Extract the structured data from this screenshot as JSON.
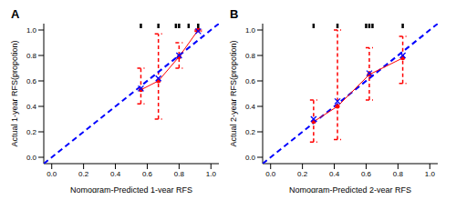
{
  "chart_data": [
    {
      "type": "scatter",
      "title": "A",
      "x_label": "Nomogram-Predicted 1-year RFS",
      "y_label": "Actual 1-year RFS(propotion)",
      "xlim": [
        -0.05,
        1.05
      ],
      "ylim": [
        -0.05,
        1.05
      ],
      "xticks": [
        {
          "value": 0,
          "label": "0.0"
        },
        {
          "value": 0.2,
          "label": "0.2"
        },
        {
          "value": 0.4,
          "label": "0.4"
        },
        {
          "value": 0.6,
          "label": "0.6"
        },
        {
          "value": 0.8,
          "label": "0.8"
        },
        {
          "value": 1,
          "label": "1.0"
        }
      ],
      "yticks": [
        {
          "value": 0,
          "label": "0.0"
        },
        {
          "value": 0.2,
          "label": "0.2"
        },
        {
          "value": 0.4,
          "label": "0.4"
        },
        {
          "value": 0.6,
          "label": "0.6"
        },
        {
          "value": 0.8,
          "label": "0.8"
        },
        {
          "value": 1,
          "label": "1.0"
        }
      ],
      "series": [
        {
          "type": "line",
          "color": "#0000ff",
          "line_style": "dashed",
          "x": [
            -0.05,
            1.05
          ],
          "values": [
            -0.05,
            1.05
          ]
        },
        {
          "type": "line",
          "color": "#ff0000",
          "marker": "circle",
          "x": [
            0.56,
            0.67,
            0.8,
            0.92
          ],
          "values": [
            0.53,
            0.6,
            0.79,
            1.0
          ],
          "error_low": [
            0.42,
            0.3,
            0.7,
            0.99
          ],
          "error_high": [
            0.7,
            0.97,
            0.9,
            1.0
          ]
        },
        {
          "type": "scatter",
          "color": "#0000ff",
          "marker": "x",
          "x": [
            0.56,
            0.67,
            0.8,
            0.92
          ],
          "values": [
            0.54,
            0.62,
            0.8,
            0.99
          ]
        }
      ],
      "rug": [
        0.56,
        0.67,
        0.78,
        0.8,
        0.86,
        0.92
      ]
    },
    {
      "type": "scatter",
      "title": "B",
      "x_label": "Nomogram-Predicted 2-year RFS",
      "y_label": "Actual 2-year RFS(propotion)",
      "xlim": [
        -0.05,
        1.05
      ],
      "ylim": [
        -0.05,
        1.05
      ],
      "xticks": [
        {
          "value": 0,
          "label": "0.0"
        },
        {
          "value": 0.2,
          "label": "0.2"
        },
        {
          "value": 0.4,
          "label": "0.4"
        },
        {
          "value": 0.6,
          "label": "0.6"
        },
        {
          "value": 0.8,
          "label": "0.8"
        },
        {
          "value": 1,
          "label": "1.0"
        }
      ],
      "yticks": [
        {
          "value": 0,
          "label": "0.0"
        },
        {
          "value": 0.2,
          "label": "0.2"
        },
        {
          "value": 0.4,
          "label": "0.4"
        },
        {
          "value": 0.6,
          "label": "0.6"
        },
        {
          "value": 0.8,
          "label": "0.8"
        },
        {
          "value": 1,
          "label": "1.0"
        }
      ],
      "series": [
        {
          "type": "line",
          "color": "#0000ff",
          "line_style": "dashed",
          "x": [
            -0.05,
            1.05
          ],
          "values": [
            -0.05,
            1.05
          ]
        },
        {
          "type": "line",
          "color": "#ff0000",
          "marker": "circle",
          "x": [
            0.27,
            0.42,
            0.62,
            0.83
          ],
          "values": [
            0.28,
            0.4,
            0.65,
            0.78
          ],
          "error_low": [
            0.12,
            0.14,
            0.45,
            0.58
          ],
          "error_high": [
            0.45,
            1.0,
            0.86,
            0.95
          ]
        },
        {
          "type": "scatter",
          "color": "#0000ff",
          "marker": "x",
          "x": [
            0.27,
            0.42,
            0.62,
            0.83
          ],
          "values": [
            0.3,
            0.44,
            0.66,
            0.8
          ]
        }
      ],
      "rug": [
        0.27,
        0.42,
        0.6,
        0.62,
        0.64,
        0.83
      ]
    }
  ]
}
